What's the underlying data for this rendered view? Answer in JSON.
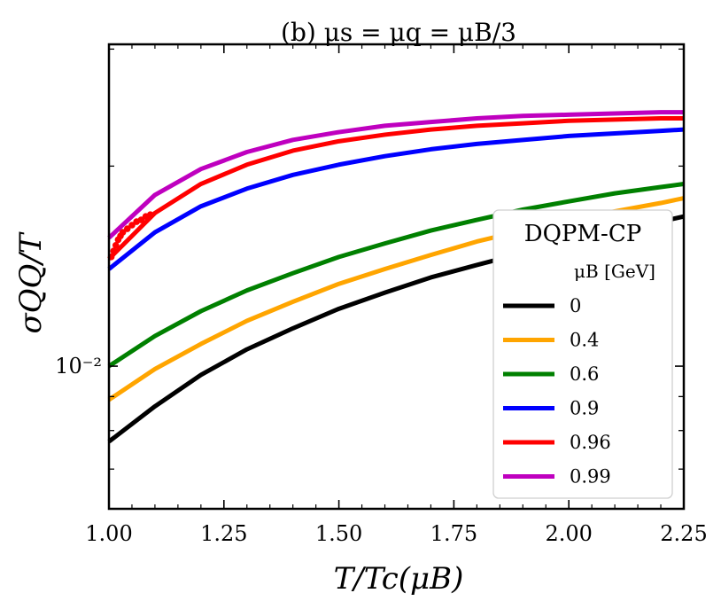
{
  "chart_data": {
    "type": "line",
    "title": "(b) μs = μq = μB/3",
    "xlabel": "T/Tc(μB)",
    "ylabel": "σQQ/T",
    "xlim": [
      1.0,
      2.25
    ],
    "ylim": [
      0.0061,
      0.0305
    ],
    "yscale": "log",
    "xticks": [
      1.0,
      1.25,
      1.5,
      1.75,
      2.0,
      2.25
    ],
    "xtick_labels": [
      "1.00",
      "1.25",
      "1.50",
      "1.75",
      "2.00",
      "2.25"
    ],
    "ytick_major": [
      0.01
    ],
    "ytick_major_labels": [
      "10⁻²"
    ],
    "ytick_minor": [
      0.007,
      0.008,
      0.009,
      0.02,
      0.03
    ],
    "legend": {
      "title": "DQPM-CP",
      "subtitle": "μB [GeV]",
      "location": "lower-right"
    },
    "grid": false,
    "series": [
      {
        "name": "0",
        "color": "#000000",
        "x": [
          1.0,
          1.1,
          1.2,
          1.3,
          1.4,
          1.5,
          1.6,
          1.7,
          1.8,
          1.9,
          2.0,
          2.1,
          2.2,
          2.25
        ],
        "values": [
          0.0077,
          0.0087,
          0.0097,
          0.0106,
          0.0114,
          0.0122,
          0.0129,
          0.0136,
          0.0142,
          0.0148,
          0.0154,
          0.016,
          0.0165,
          0.0168
        ]
      },
      {
        "name": "0.4",
        "color": "#ffa500",
        "x": [
          1.0,
          1.1,
          1.2,
          1.3,
          1.4,
          1.5,
          1.6,
          1.7,
          1.8,
          1.9,
          2.0,
          2.1,
          2.2,
          2.25
        ],
        "values": [
          0.0089,
          0.0099,
          0.0108,
          0.0117,
          0.0125,
          0.0133,
          0.014,
          0.0147,
          0.0154,
          0.016,
          0.0166,
          0.0171,
          0.0176,
          0.0179
        ]
      },
      {
        "name": "0.6",
        "color": "#008000",
        "x": [
          1.0,
          1.1,
          1.2,
          1.3,
          1.4,
          1.5,
          1.6,
          1.7,
          1.8,
          1.9,
          2.0,
          2.1,
          2.2,
          2.25
        ],
        "values": [
          0.01,
          0.0111,
          0.0121,
          0.013,
          0.0138,
          0.0146,
          0.0153,
          0.016,
          0.0166,
          0.0172,
          0.0177,
          0.0182,
          0.0186,
          0.0188
        ]
      },
      {
        "name": "0.9",
        "color": "#0000ff",
        "x": [
          1.0,
          1.1,
          1.2,
          1.3,
          1.4,
          1.5,
          1.6,
          1.7,
          1.8,
          1.9,
          2.0,
          2.1,
          2.2,
          2.25
        ],
        "values": [
          0.014,
          0.0159,
          0.0174,
          0.0185,
          0.0194,
          0.0201,
          0.0207,
          0.0212,
          0.0216,
          0.0219,
          0.0222,
          0.0224,
          0.0226,
          0.0227
        ]
      },
      {
        "name": "0.96",
        "color": "#ff0000",
        "x": [
          1.0,
          1.1,
          1.2,
          1.3,
          1.4,
          1.5,
          1.6,
          1.7,
          1.8,
          1.9,
          2.0,
          2.1,
          2.2,
          2.25
        ],
        "values": [
          0.0145,
          0.017,
          0.0188,
          0.0201,
          0.0211,
          0.0218,
          0.0223,
          0.0227,
          0.023,
          0.0232,
          0.0234,
          0.0235,
          0.0236,
          0.0236
        ],
        "marker_points": {
          "x": [
            1.005,
            1.01,
            1.015,
            1.02,
            1.025,
            1.03,
            1.04,
            1.05,
            1.06,
            1.07,
            1.08,
            1.09
          ],
          "values": [
            0.0146,
            0.0149,
            0.0152,
            0.0155,
            0.0157,
            0.0159,
            0.0161,
            0.0163,
            0.0165,
            0.0166,
            0.0168,
            0.0169
          ]
        }
      },
      {
        "name": "0.99",
        "color": "#bf00bf",
        "x": [
          1.0,
          1.1,
          1.2,
          1.3,
          1.4,
          1.5,
          1.6,
          1.7,
          1.8,
          1.9,
          2.0,
          2.1,
          2.2,
          2.25
        ],
        "values": [
          0.0156,
          0.0181,
          0.0198,
          0.021,
          0.0219,
          0.0225,
          0.023,
          0.0233,
          0.0236,
          0.0238,
          0.0239,
          0.024,
          0.0241,
          0.0241
        ]
      }
    ]
  }
}
